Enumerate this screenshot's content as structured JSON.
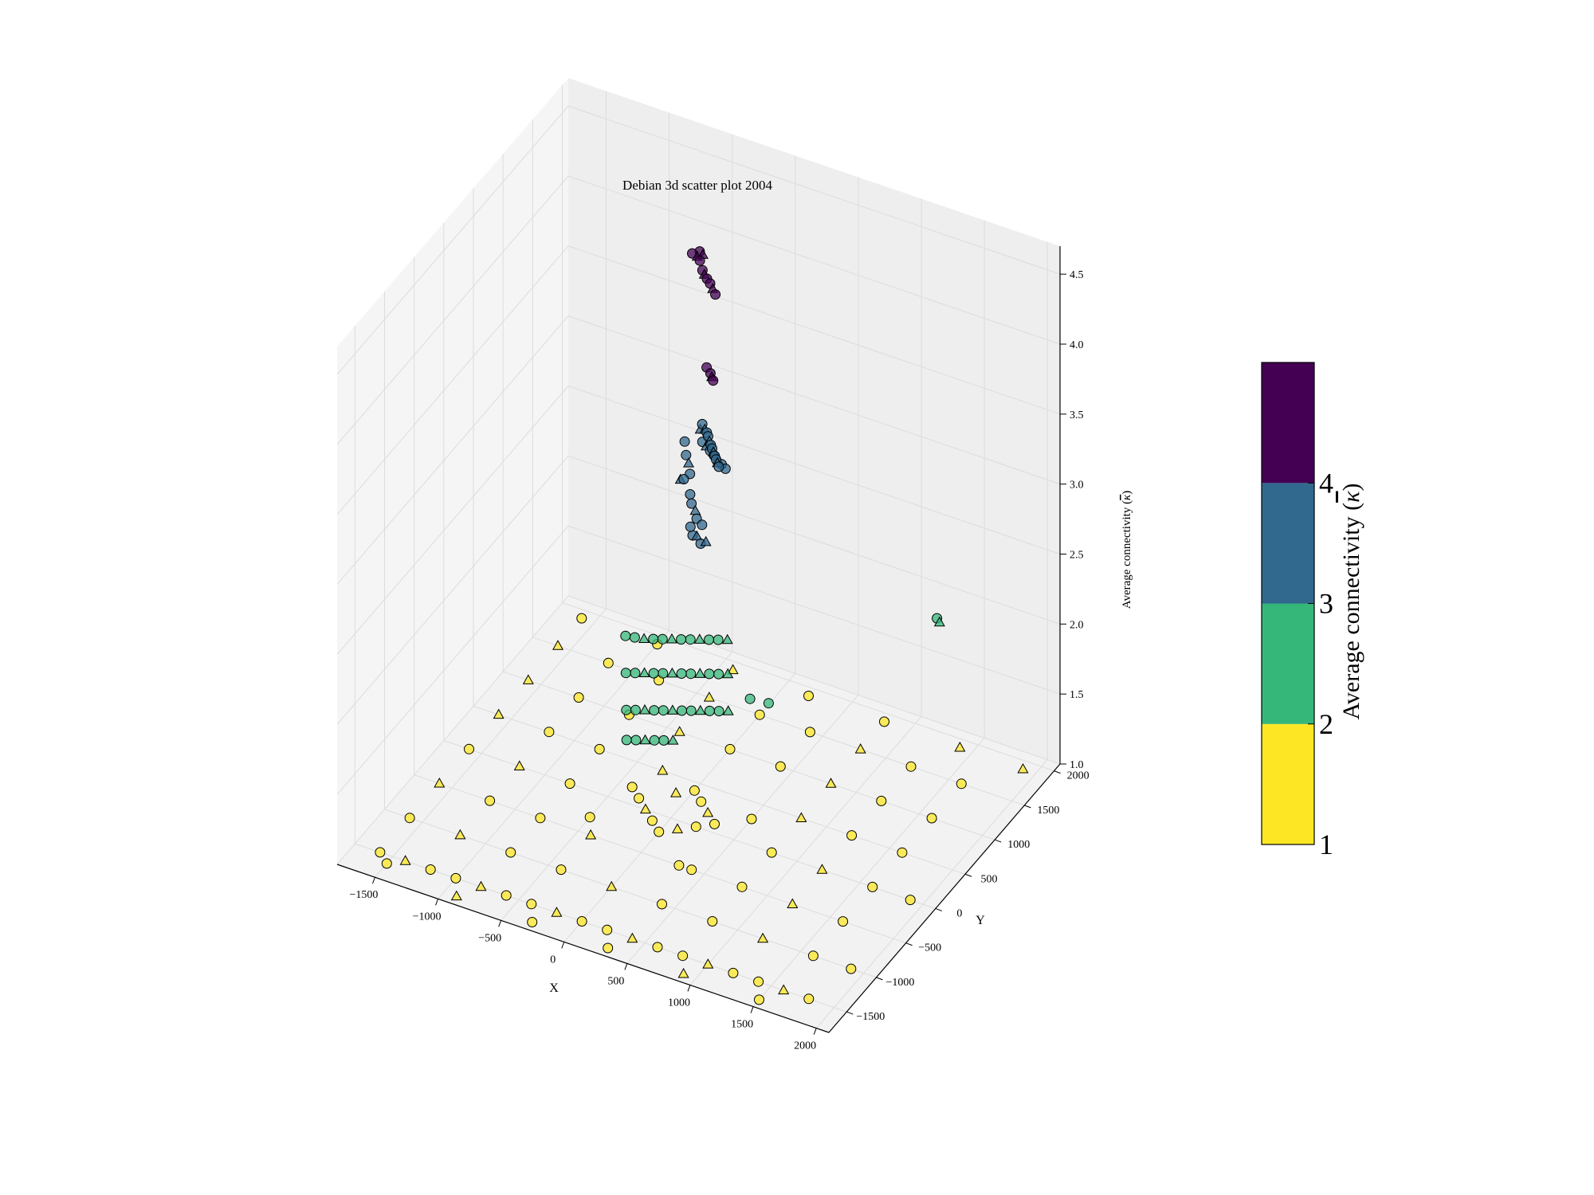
{
  "chart_data": {
    "type": "scatter",
    "projection": "3d",
    "title": "Debian 3d scatter plot 2004",
    "xlabel": "X",
    "ylabel": "Y",
    "zlabel": "Average connectivity $\\bar{\\kappa}$",
    "xlim": [
      -1800,
      2100
    ],
    "ylim": [
      -1800,
      2100
    ],
    "zlim": [
      1.0,
      4.7
    ],
    "xticks": [
      -1500,
      -1000,
      -500,
      0,
      500,
      1000,
      1500,
      2000
    ],
    "yticks": [
      -1500,
      -1000,
      -500,
      0,
      500,
      1000,
      1500,
      2000
    ],
    "zticks": [
      1.0,
      1.5,
      2.0,
      2.5,
      3.0,
      3.5,
      4.0,
      4.5
    ],
    "grid": true,
    "marker_types": [
      "circle",
      "triangle"
    ],
    "colorbar": {
      "label": "Average connectivity $\\bar{\\kappa}$",
      "ticks": [
        1,
        2,
        3,
        4
      ],
      "levels": [
        {
          "value": 1,
          "color": "#fde725"
        },
        {
          "value": 2,
          "color": "#35b779"
        },
        {
          "value": 3,
          "color": "#31688e"
        },
        {
          "value": 4,
          "color": "#440154"
        }
      ]
    },
    "series": [
      {
        "level": 4,
        "color": "#440154",
        "points": [
          [
            -300,
            1000,
            4.45
          ],
          [
            -260,
            1000,
            4.44
          ],
          [
            -230,
            980,
            4.43
          ],
          [
            -200,
            960,
            4.38
          ],
          [
            -180,
            950,
            4.36
          ],
          [
            -150,
            930,
            4.35
          ],
          [
            -120,
            920,
            4.33
          ],
          [
            -90,
            900,
            4.31
          ],
          [
            -60,
            880,
            4.29
          ],
          [
            -250,
            1020,
            4.47
          ],
          [
            -220,
            1010,
            4.46
          ],
          [
            -120,
            860,
            3.76
          ],
          [
            -80,
            840,
            3.74
          ],
          [
            -60,
            820,
            3.73
          ],
          [
            -40,
            800,
            3.72
          ]
        ]
      },
      {
        "level": 3,
        "color": "#31688e",
        "points": [
          [
            -150,
            850,
            3.35
          ],
          [
            -120,
            830,
            3.33
          ],
          [
            -100,
            820,
            3.32
          ],
          [
            -80,
            800,
            3.31
          ],
          [
            -60,
            780,
            3.29
          ],
          [
            -40,
            760,
            3.28
          ],
          [
            -20,
            740,
            3.27
          ],
          [
            0,
            720,
            3.26
          ],
          [
            20,
            700,
            3.25
          ],
          [
            40,
            680,
            3.24
          ],
          [
            60,
            660,
            3.23
          ],
          [
            80,
            640,
            3.22
          ],
          [
            -130,
            810,
            3.25
          ],
          [
            -90,
            790,
            3.24
          ],
          [
            -50,
            770,
            3.23
          ],
          [
            -10,
            750,
            3.22
          ],
          [
            30,
            730,
            3.21
          ],
          [
            70,
            710,
            3.2
          ],
          [
            110,
            690,
            3.19
          ],
          [
            -170,
            860,
            3.3
          ],
          [
            -350,
            980,
            3.1
          ],
          [
            -330,
            960,
            3.02
          ],
          [
            -300,
            940,
            2.98
          ],
          [
            -280,
            920,
            2.92
          ],
          [
            -320,
            900,
            2.88
          ],
          [
            -360,
            930,
            2.85
          ],
          [
            -260,
            880,
            2.8
          ],
          [
            -240,
            860,
            2.75
          ],
          [
            -200,
            840,
            2.72
          ],
          [
            -180,
            820,
            2.68
          ],
          [
            -220,
            800,
            2.62
          ],
          [
            -160,
            780,
            2.58
          ],
          [
            -120,
            760,
            2.55
          ],
          [
            -100,
            740,
            2.7
          ],
          [
            -60,
            720,
            2.6
          ],
          [
            -250,
            900,
            2.5
          ]
        ]
      },
      {
        "level": 2,
        "color": "#35b779",
        "points": [
          [
            1500,
            1300,
            2.25
          ],
          [
            1530,
            1280,
            2.24
          ],
          [
            -500,
            300,
            2.0
          ],
          [
            -450,
            350,
            1.98
          ],
          [
            -400,
            400,
            1.96
          ],
          [
            -350,
            450,
            1.95
          ],
          [
            -300,
            500,
            1.94
          ],
          [
            -250,
            550,
            1.93
          ],
          [
            -200,
            600,
            1.92
          ],
          [
            -150,
            650,
            1.91
          ],
          [
            -100,
            700,
            1.9
          ],
          [
            -50,
            750,
            1.89
          ],
          [
            0,
            800,
            1.88
          ],
          [
            50,
            850,
            1.87
          ],
          [
            -450,
            200,
            1.8
          ],
          [
            -400,
            250,
            1.79
          ],
          [
            -350,
            300,
            1.78
          ],
          [
            -300,
            350,
            1.77
          ],
          [
            -250,
            400,
            1.76
          ],
          [
            -200,
            450,
            1.75
          ],
          [
            -150,
            500,
            1.74
          ],
          [
            -100,
            550,
            1.73
          ],
          [
            -50,
            600,
            1.72
          ],
          [
            0,
            650,
            1.71
          ],
          [
            50,
            700,
            1.7
          ],
          [
            100,
            750,
            1.69
          ],
          [
            -400,
            100,
            1.6
          ],
          [
            -350,
            150,
            1.59
          ],
          [
            -300,
            200,
            1.58
          ],
          [
            -250,
            250,
            1.57
          ],
          [
            -200,
            300,
            1.56
          ],
          [
            -150,
            350,
            1.55
          ],
          [
            -100,
            400,
            1.54
          ],
          [
            -50,
            450,
            1.53
          ],
          [
            0,
            500,
            1.52
          ],
          [
            50,
            550,
            1.51
          ],
          [
            100,
            600,
            1.5
          ],
          [
            150,
            650,
            1.49
          ],
          [
            -350,
            0,
            1.45
          ],
          [
            -300,
            50,
            1.44
          ],
          [
            -250,
            100,
            1.43
          ],
          [
            -200,
            150,
            1.42
          ],
          [
            -150,
            200,
            1.41
          ],
          [
            -100,
            250,
            1.4
          ],
          [
            300,
            700,
            1.6
          ],
          [
            400,
            800,
            1.55
          ]
        ]
      },
      {
        "level": 1,
        "color": "#fde725",
        "points": [
          [
            -1600,
            -1500,
            1.0
          ],
          [
            -1400,
            -1500,
            1.0
          ],
          [
            -1200,
            -1500,
            1.0
          ],
          [
            -1000,
            -1500,
            1.0
          ],
          [
            -800,
            -1500,
            1.0
          ],
          [
            -600,
            -1500,
            1.0
          ],
          [
            -400,
            -1500,
            1.0
          ],
          [
            -200,
            -1500,
            1.0
          ],
          [
            0,
            -1500,
            1.0
          ],
          [
            200,
            -1500,
            1.0
          ],
          [
            400,
            -1500,
            1.0
          ],
          [
            600,
            -1500,
            1.0
          ],
          [
            800,
            -1500,
            1.0
          ],
          [
            1000,
            -1500,
            1.0
          ],
          [
            1200,
            -1500,
            1.0
          ],
          [
            1400,
            -1500,
            1.0
          ],
          [
            1600,
            -1500,
            1.0
          ],
          [
            1800,
            -1500,
            1.0
          ],
          [
            -1600,
            -1000,
            1.0
          ],
          [
            -1200,
            -1000,
            1.0
          ],
          [
            -800,
            -1000,
            1.0
          ],
          [
            -400,
            -1000,
            1.0
          ],
          [
            0,
            -1000,
            1.0
          ],
          [
            400,
            -1000,
            1.0
          ],
          [
            800,
            -1000,
            1.0
          ],
          [
            1200,
            -1000,
            1.0
          ],
          [
            1600,
            -1000,
            1.0
          ],
          [
            1900,
            -1000,
            1.0
          ],
          [
            -1600,
            -500,
            1.0
          ],
          [
            -1200,
            -500,
            1.0
          ],
          [
            -800,
            -500,
            1.0
          ],
          [
            -400,
            -500,
            1.0
          ],
          [
            400,
            -500,
            1.0
          ],
          [
            800,
            -500,
            1.0
          ],
          [
            1200,
            -500,
            1.0
          ],
          [
            1600,
            -500,
            1.0
          ],
          [
            -1600,
            0,
            1.0
          ],
          [
            -1200,
            0,
            1.0
          ],
          [
            -800,
            0,
            1.0
          ],
          [
            800,
            0,
            1.0
          ],
          [
            1200,
            0,
            1.0
          ],
          [
            1600,
            0,
            1.0
          ],
          [
            1900,
            0,
            1.0
          ],
          [
            -1600,
            500,
            1.0
          ],
          [
            -1200,
            500,
            1.0
          ],
          [
            -800,
            500,
            1.0
          ],
          [
            800,
            500,
            1.0
          ],
          [
            1200,
            500,
            1.0
          ],
          [
            1600,
            500,
            1.0
          ],
          [
            -1600,
            1000,
            1.0
          ],
          [
            -1200,
            1000,
            1.0
          ],
          [
            -800,
            1000,
            1.0
          ],
          [
            -400,
            1000,
            1.0
          ],
          [
            0,
            1000,
            1.0
          ],
          [
            400,
            1000,
            1.0
          ],
          [
            800,
            1000,
            1.0
          ],
          [
            1200,
            1000,
            1.0
          ],
          [
            1600,
            1000,
            1.0
          ],
          [
            -1600,
            1500,
            1.0
          ],
          [
            -1200,
            1500,
            1.0
          ],
          [
            -800,
            1500,
            1.0
          ],
          [
            -400,
            1500,
            1.0
          ],
          [
            0,
            1500,
            1.0
          ],
          [
            400,
            1500,
            1.0
          ],
          [
            800,
            1500,
            1.0
          ],
          [
            1200,
            1500,
            1.0
          ],
          [
            1600,
            1500,
            1.0
          ],
          [
            1900,
            1900,
            1.0
          ],
          [
            -1600,
            1900,
            1.0
          ],
          [
            -1000,
            1900,
            1.0
          ],
          [
            -400,
            1900,
            1.0
          ],
          [
            200,
            1900,
            1.0
          ],
          [
            800,
            1900,
            1.0
          ],
          [
            1400,
            1900,
            1.0
          ],
          [
            -400,
            200,
            1.0
          ],
          [
            -300,
            100,
            1.0
          ],
          [
            -200,
            0,
            1.0
          ],
          [
            -100,
            -100,
            1.0
          ],
          [
            0,
            -200,
            1.0
          ],
          [
            100,
            -100,
            1.0
          ],
          [
            200,
            0,
            1.0
          ],
          [
            300,
            100,
            1.0
          ],
          [
            200,
            200,
            1.0
          ],
          [
            100,
            300,
            1.0
          ],
          [
            0,
            400,
            1.0
          ],
          [
            -100,
            300,
            1.0
          ],
          [
            -500,
            -300,
            1.0
          ],
          [
            500,
            300,
            1.0
          ],
          [
            -300,
            500,
            1.0
          ],
          [
            300,
            -500,
            1.0
          ],
          [
            -1500,
            -1600,
            1.0
          ],
          [
            -900,
            -1700,
            1.0
          ],
          [
            -300,
            -1700,
            1.0
          ],
          [
            300,
            -1700,
            1.0
          ],
          [
            900,
            -1700,
            1.0
          ],
          [
            1500,
            -1700,
            1.0
          ]
        ]
      }
    ]
  }
}
